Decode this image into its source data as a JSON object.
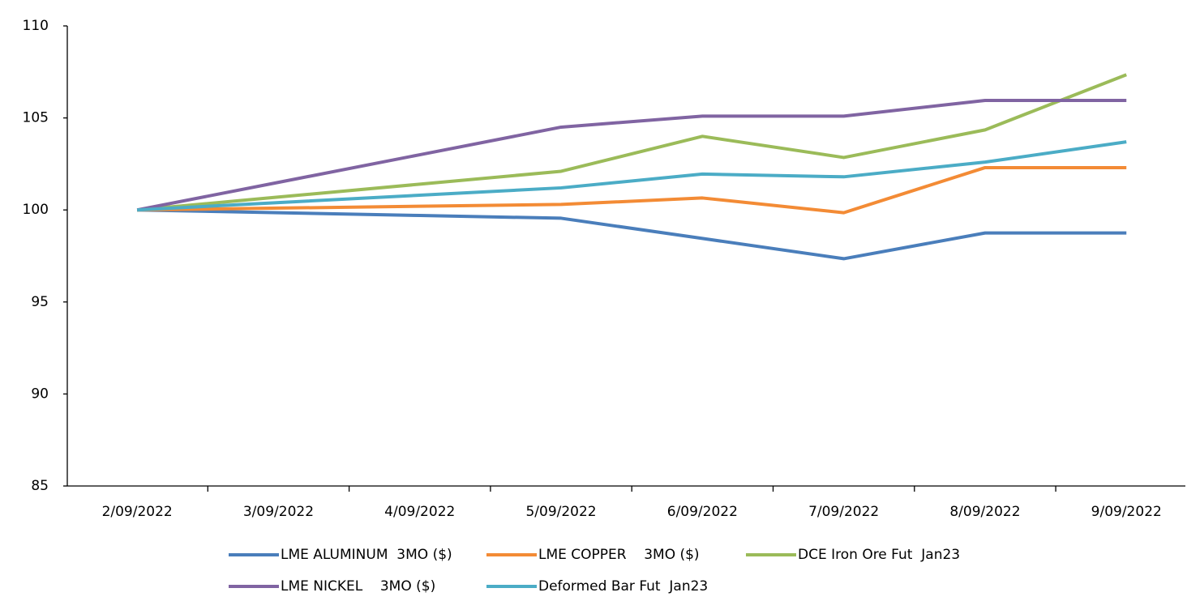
{
  "chart_data": {
    "type": "line",
    "categories": [
      "2/09/2022",
      "3/09/2022",
      "4/09/2022",
      "5/09/2022",
      "6/09/2022",
      "7/09/2022",
      "8/09/2022",
      "9/09/2022"
    ],
    "series": [
      {
        "name": "LME ALUMINUM  3MO ($)",
        "color": "#4a7ebb",
        "values": [
          100,
          99.85,
          99.7,
          99.55,
          98.45,
          97.35,
          98.75,
          98.75
        ]
      },
      {
        "name": "LME COPPER    3MO ($)",
        "color": "#f38b35",
        "values": [
          100,
          100.1,
          100.2,
          100.3,
          100.65,
          99.85,
          102.3,
          102.3
        ]
      },
      {
        "name": "DCE Iron Ore Fut  Jan23",
        "color": "#9bbb59",
        "values": [
          100,
          100.7,
          101.4,
          102.1,
          104.0,
          102.85,
          104.35,
          107.35
        ]
      },
      {
        "name": "LME NICKEL    3MO ($)",
        "color": "#8064a2",
        "values": [
          100,
          101.5,
          103.0,
          104.5,
          105.1,
          105.1,
          105.95,
          105.95
        ]
      },
      {
        "name": "Deformed Bar Fut  Jan23",
        "color": "#4bacc6",
        "values": [
          100,
          100.4,
          100.8,
          101.2,
          101.95,
          101.8,
          102.6,
          103.7
        ]
      }
    ],
    "ylim": [
      85,
      110
    ],
    "yticks": [
      85,
      90,
      95,
      100,
      105,
      110
    ],
    "grid": false,
    "legend": "bottom"
  }
}
